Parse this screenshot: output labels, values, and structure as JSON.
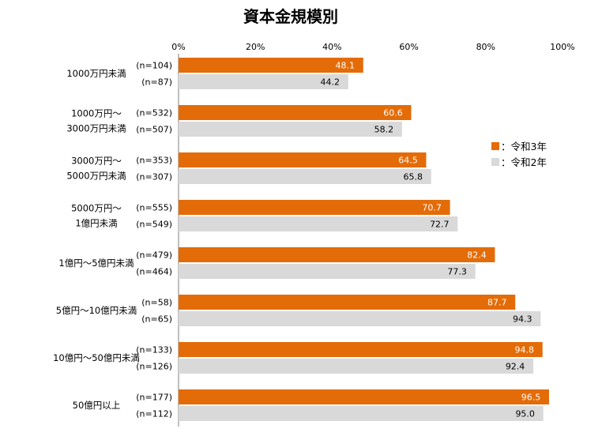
{
  "chart_data": {
    "type": "bar",
    "orientation": "horizontal",
    "title": "資本金規模別",
    "xlim": [
      0,
      100
    ],
    "x_ticks": [
      "0%",
      "20%",
      "40%",
      "60%",
      "80%",
      "100%"
    ],
    "grid": false,
    "legend_position": "right",
    "categories": [
      [
        "1000万円未満"
      ],
      [
        "1000万円～",
        "3000万円未満"
      ],
      [
        "3000万円～",
        "5000万円未満"
      ],
      [
        "5000万円～",
        "1億円未満"
      ],
      [
        "1億円～5億円未満"
      ],
      [
        "5億円～10億円未満"
      ],
      [
        "10億円～50億円未満"
      ],
      [
        "50億円以上"
      ]
    ],
    "series": [
      {
        "name": "令和3年",
        "legend_label": "：令和3年",
        "color": "#E36C09",
        "label_color": "#ffffff",
        "values": [
          48.1,
          60.6,
          64.5,
          70.7,
          82.4,
          87.7,
          94.8,
          96.5
        ],
        "value_labels": [
          "48.1",
          "60.6",
          "64.5",
          "70.7",
          "82.4",
          "87.7",
          "94.8",
          "96.5"
        ],
        "n": [
          "(n=104)",
          "(n=532)",
          "(n=353)",
          "(n=555)",
          "(n=479)",
          "(n=58)",
          "(n=133)",
          "(n=177)"
        ]
      },
      {
        "name": "令和2年",
        "legend_label": "：令和2年",
        "color": "#D9D9D9",
        "label_color": "#000000",
        "values": [
          44.2,
          58.2,
          65.8,
          72.7,
          77.3,
          94.3,
          92.4,
          95.0
        ],
        "value_labels": [
          "44.2",
          "58.2",
          "65.8",
          "72.7",
          "77.3",
          "94.3",
          "92.4",
          "95.0"
        ],
        "n": [
          "(n=87)",
          "(n=507)",
          "(n=307)",
          "(n=549)",
          "(n=464)",
          "(n=65)",
          "(n=126)",
          "(n=112)"
        ]
      }
    ]
  }
}
